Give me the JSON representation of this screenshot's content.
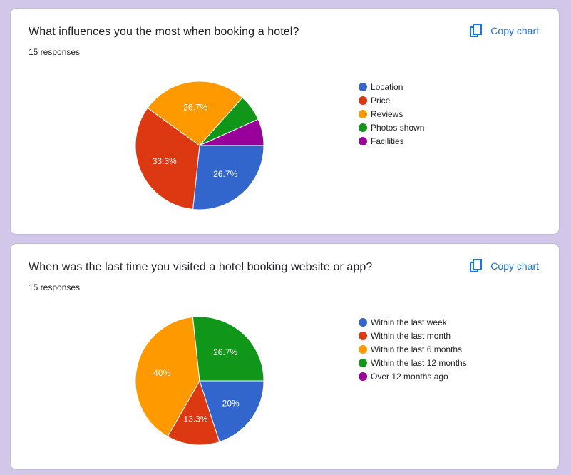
{
  "copy_label": "Copy chart",
  "charts": [
    {
      "title": "What influences you the most when booking a hotel?",
      "responses": "15 responses",
      "chart_data": {
        "type": "pie",
        "categories": [
          "Location",
          "Price",
          "Reviews",
          "Photos shown",
          "Facilities"
        ],
        "values": [
          26.7,
          33.3,
          26.7,
          6.7,
          6.7
        ],
        "labels": [
          "26.7%",
          "33.3%",
          "26.7%",
          "",
          ""
        ],
        "colors": [
          "#3366cc",
          "#dc3912",
          "#ff9900",
          "#109618",
          "#990099"
        ],
        "legend_position": "right"
      }
    },
    {
      "title": "When was the last time you visited a hotel booking website or app?",
      "responses": "15 responses",
      "chart_data": {
        "type": "pie",
        "categories": [
          "Within the last week",
          "Within the last month",
          "Within the last 6 months",
          "Within the last 12 months",
          "Over 12 months ago"
        ],
        "values": [
          20,
          13.3,
          40,
          26.7,
          0
        ],
        "labels": [
          "20%",
          "13.3%",
          "40%",
          "26.7%",
          ""
        ],
        "colors": [
          "#3366cc",
          "#dc3912",
          "#ff9900",
          "#109618",
          "#990099"
        ],
        "legend_position": "right"
      }
    }
  ]
}
